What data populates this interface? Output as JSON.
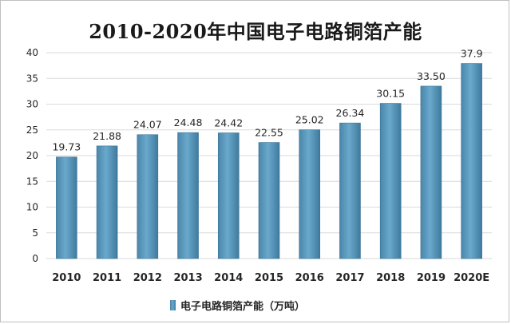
{
  "chart_data": {
    "type": "bar",
    "title": "2010-2020年中国电子电路铜箔产能",
    "categories": [
      "2010",
      "2011",
      "2012",
      "2013",
      "2014",
      "2015",
      "2016",
      "2017",
      "2018",
      "2019",
      "2020E"
    ],
    "series": [
      {
        "name": "电子电路铜箔产能（万吨）",
        "values": [
          19.73,
          21.88,
          24.07,
          24.48,
          24.42,
          22.55,
          25.02,
          26.34,
          30.15,
          33.5,
          37.9
        ],
        "labels": [
          "19.73",
          "21.88",
          "24.07",
          "24.48",
          "24.42",
          "22.55",
          "25.02",
          "26.34",
          "30.15",
          "33.50",
          "37.9"
        ],
        "color": "#5b9bbf"
      }
    ],
    "ylim": [
      0,
      40
    ],
    "yticks": [
      "0",
      "5",
      "10",
      "15",
      "20",
      "25",
      "30",
      "35",
      "40"
    ],
    "grid": true,
    "legend": "bottom"
  }
}
